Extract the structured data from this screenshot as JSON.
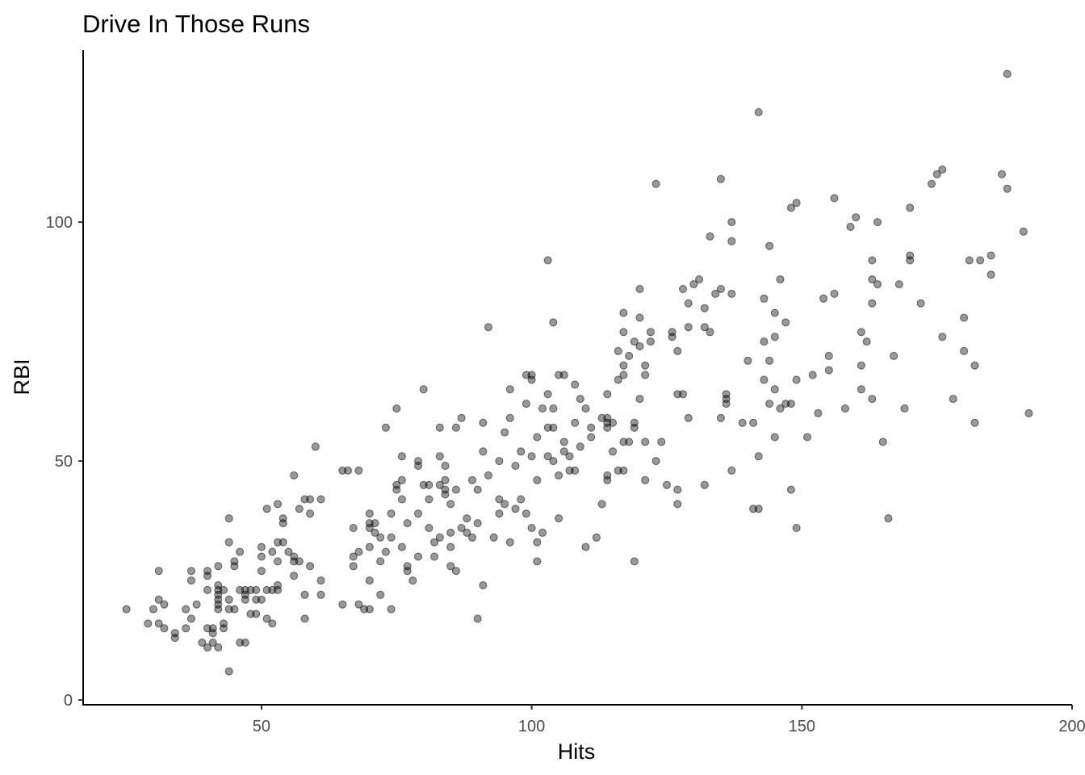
{
  "chart_data": {
    "type": "scatter",
    "title": "Drive In Those Runs",
    "xlabel": "Hits",
    "ylabel": "RBI",
    "xlim": [
      17,
      200
    ],
    "ylim": [
      -1,
      136
    ],
    "x_ticks": [
      50,
      100,
      150,
      200
    ],
    "x_tick_labels": [
      "50",
      "100",
      "150",
      "200"
    ],
    "y_ticks": [
      0,
      50,
      100
    ],
    "y_tick_labels": [
      "0",
      "50",
      "100"
    ],
    "grid": false,
    "legend": "none",
    "point_color": "#000000",
    "point_alpha": 0.4,
    "points": [
      [
        25,
        19
      ],
      [
        29,
        16
      ],
      [
        30,
        19
      ],
      [
        31,
        27
      ],
      [
        31,
        21
      ],
      [
        31,
        16
      ],
      [
        32,
        15
      ],
      [
        32,
        20
      ],
      [
        34,
        13
      ],
      [
        34,
        14
      ],
      [
        36,
        15
      ],
      [
        36,
        19
      ],
      [
        37,
        17
      ],
      [
        37,
        25
      ],
      [
        37,
        27
      ],
      [
        38,
        20
      ],
      [
        39,
        12
      ],
      [
        40,
        15
      ],
      [
        40,
        27
      ],
      [
        40,
        26
      ],
      [
        40,
        23
      ],
      [
        40,
        11
      ],
      [
        41,
        14
      ],
      [
        41,
        15
      ],
      [
        41,
        12
      ],
      [
        42,
        11
      ],
      [
        42,
        21
      ],
      [
        42,
        24
      ],
      [
        42,
        19
      ],
      [
        42,
        20
      ],
      [
        42,
        22
      ],
      [
        42,
        23
      ],
      [
        42,
        28
      ],
      [
        43,
        16
      ],
      [
        43,
        15
      ],
      [
        43,
        23
      ],
      [
        44,
        19
      ],
      [
        44,
        38
      ],
      [
        44,
        33
      ],
      [
        44,
        6
      ],
      [
        44,
        21
      ],
      [
        45,
        29
      ],
      [
        45,
        28
      ],
      [
        45,
        19
      ],
      [
        46,
        23
      ],
      [
        46,
        31
      ],
      [
        46,
        12
      ],
      [
        47,
        12
      ],
      [
        47,
        21
      ],
      [
        47,
        22
      ],
      [
        47,
        23
      ],
      [
        48,
        18
      ],
      [
        48,
        23
      ],
      [
        49,
        21
      ],
      [
        49,
        18
      ],
      [
        49,
        23
      ],
      [
        50,
        32
      ],
      [
        50,
        27
      ],
      [
        50,
        30
      ],
      [
        50,
        21
      ],
      [
        51,
        23
      ],
      [
        51,
        40
      ],
      [
        51,
        17
      ],
      [
        52,
        23
      ],
      [
        52,
        31
      ],
      [
        52,
        16
      ],
      [
        53,
        24
      ],
      [
        53,
        33
      ],
      [
        53,
        23
      ],
      [
        53,
        41
      ],
      [
        53,
        29
      ],
      [
        54,
        37
      ],
      [
        54,
        38
      ],
      [
        54,
        33
      ],
      [
        55,
        31
      ],
      [
        56,
        47
      ],
      [
        56,
        29
      ],
      [
        56,
        30
      ],
      [
        56,
        26
      ],
      [
        57,
        40
      ],
      [
        57,
        29
      ],
      [
        58,
        22
      ],
      [
        58,
        42
      ],
      [
        58,
        17
      ],
      [
        59,
        28
      ],
      [
        59,
        39
      ],
      [
        59,
        42
      ],
      [
        60,
        53
      ],
      [
        61,
        42
      ],
      [
        61,
        25
      ],
      [
        61,
        22
      ],
      [
        65,
        48
      ],
      [
        65,
        20
      ],
      [
        66,
        48
      ],
      [
        67,
        30
      ],
      [
        67,
        36
      ],
      [
        67,
        28
      ],
      [
        68,
        48
      ],
      [
        68,
        31
      ],
      [
        68,
        20
      ],
      [
        69,
        19
      ],
      [
        70,
        25
      ],
      [
        70,
        36
      ],
      [
        70,
        37
      ],
      [
        70,
        32
      ],
      [
        70,
        19
      ],
      [
        70,
        39
      ],
      [
        71,
        35
      ],
      [
        71,
        37
      ],
      [
        72,
        34
      ],
      [
        72,
        22
      ],
      [
        72,
        29
      ],
      [
        73,
        31
      ],
      [
        73,
        57
      ],
      [
        74,
        34
      ],
      [
        74,
        19
      ],
      [
        74,
        39
      ],
      [
        75,
        44
      ],
      [
        75,
        45
      ],
      [
        75,
        61
      ],
      [
        76,
        46
      ],
      [
        76,
        42
      ],
      [
        76,
        32
      ],
      [
        76,
        51
      ],
      [
        77,
        37
      ],
      [
        77,
        28
      ],
      [
        77,
        27
      ],
      [
        78,
        25
      ],
      [
        79,
        49
      ],
      [
        79,
        50
      ],
      [
        79,
        39
      ],
      [
        79,
        30
      ],
      [
        80,
        65
      ],
      [
        80,
        45
      ],
      [
        81,
        42
      ],
      [
        81,
        45
      ],
      [
        81,
        36
      ],
      [
        82,
        33
      ],
      [
        82,
        30
      ],
      [
        83,
        57
      ],
      [
        83,
        45
      ],
      [
        83,
        34
      ],
      [
        83,
        51
      ],
      [
        84,
        46
      ],
      [
        84,
        44
      ],
      [
        84,
        49
      ],
      [
        84,
        43
      ],
      [
        85,
        41
      ],
      [
        85,
        35
      ],
      [
        85,
        28
      ],
      [
        85,
        32
      ],
      [
        86,
        44
      ],
      [
        86,
        57
      ],
      [
        86,
        27
      ],
      [
        87,
        59
      ],
      [
        87,
        36
      ],
      [
        88,
        35
      ],
      [
        88,
        38
      ],
      [
        89,
        34
      ],
      [
        89,
        46
      ],
      [
        90,
        17
      ],
      [
        90,
        37
      ],
      [
        90,
        44
      ],
      [
        91,
        24
      ],
      [
        91,
        52
      ],
      [
        91,
        58
      ],
      [
        92,
        78
      ],
      [
        92,
        47
      ],
      [
        93,
        34
      ],
      [
        94,
        50
      ],
      [
        94,
        39
      ],
      [
        94,
        42
      ],
      [
        95,
        41
      ],
      [
        95,
        56
      ],
      [
        96,
        59
      ],
      [
        96,
        33
      ],
      [
        96,
        65
      ],
      [
        97,
        49
      ],
      [
        97,
        40
      ],
      [
        98,
        42
      ],
      [
        98,
        52
      ],
      [
        99,
        62
      ],
      [
        99,
        68
      ],
      [
        99,
        39
      ],
      [
        100,
        68
      ],
      [
        100,
        51
      ],
      [
        100,
        67
      ],
      [
        100,
        36
      ],
      [
        101,
        33
      ],
      [
        101,
        46
      ],
      [
        101,
        55
      ],
      [
        101,
        29
      ],
      [
        102,
        61
      ],
      [
        102,
        35
      ],
      [
        103,
        57
      ],
      [
        103,
        64
      ],
      [
        103,
        92
      ],
      [
        103,
        51
      ],
      [
        104,
        57
      ],
      [
        104,
        50
      ],
      [
        104,
        61
      ],
      [
        104,
        79
      ],
      [
        105,
        68
      ],
      [
        105,
        47
      ],
      [
        105,
        38
      ],
      [
        106,
        54
      ],
      [
        106,
        52
      ],
      [
        106,
        68
      ],
      [
        107,
        51
      ],
      [
        107,
        48
      ],
      [
        108,
        58
      ],
      [
        108,
        66
      ],
      [
        108,
        48
      ],
      [
        109,
        63
      ],
      [
        109,
        53
      ],
      [
        110,
        32
      ],
      [
        110,
        61
      ],
      [
        111,
        57
      ],
      [
        111,
        55
      ],
      [
        112,
        34
      ],
      [
        113,
        41
      ],
      [
        113,
        59
      ],
      [
        114,
        64
      ],
      [
        114,
        47
      ],
      [
        114,
        46
      ],
      [
        114,
        57
      ],
      [
        114,
        58
      ],
      [
        114,
        59
      ],
      [
        115,
        58
      ],
      [
        115,
        52
      ],
      [
        116,
        73
      ],
      [
        116,
        48
      ],
      [
        116,
        67
      ],
      [
        117,
        54
      ],
      [
        117,
        68
      ],
      [
        117,
        77
      ],
      [
        117,
        70
      ],
      [
        117,
        81
      ],
      [
        117,
        48
      ],
      [
        118,
        54
      ],
      [
        118,
        72
      ],
      [
        119,
        58
      ],
      [
        119,
        29
      ],
      [
        119,
        57
      ],
      [
        119,
        75
      ],
      [
        120,
        86
      ],
      [
        120,
        74
      ],
      [
        120,
        63
      ],
      [
        120,
        80
      ],
      [
        121,
        54
      ],
      [
        121,
        70
      ],
      [
        121,
        46
      ],
      [
        121,
        68
      ],
      [
        122,
        77
      ],
      [
        122,
        75
      ],
      [
        123,
        108
      ],
      [
        123,
        50
      ],
      [
        124,
        54
      ],
      [
        125,
        45
      ],
      [
        126,
        77
      ],
      [
        126,
        76
      ],
      [
        127,
        64
      ],
      [
        127,
        73
      ],
      [
        127,
        44
      ],
      [
        127,
        41
      ],
      [
        128,
        64
      ],
      [
        128,
        86
      ],
      [
        129,
        59
      ],
      [
        129,
        83
      ],
      [
        129,
        78
      ],
      [
        130,
        87
      ],
      [
        131,
        88
      ],
      [
        132,
        78
      ],
      [
        132,
        82
      ],
      [
        132,
        45
      ],
      [
        133,
        77
      ],
      [
        133,
        97
      ],
      [
        134,
        85
      ],
      [
        135,
        59
      ],
      [
        135,
        86
      ],
      [
        135,
        109
      ],
      [
        136,
        64
      ],
      [
        136,
        63
      ],
      [
        136,
        62
      ],
      [
        137,
        85
      ],
      [
        137,
        96
      ],
      [
        137,
        100
      ],
      [
        137,
        48
      ],
      [
        139,
        58
      ],
      [
        140,
        71
      ],
      [
        141,
        58
      ],
      [
        141,
        40
      ],
      [
        142,
        40
      ],
      [
        142,
        51
      ],
      [
        142,
        123
      ],
      [
        143,
        84
      ],
      [
        143,
        67
      ],
      [
        143,
        75
      ],
      [
        144,
        71
      ],
      [
        144,
        95
      ],
      [
        144,
        62
      ],
      [
        145,
        81
      ],
      [
        145,
        76
      ],
      [
        145,
        65
      ],
      [
        145,
        55
      ],
      [
        146,
        88
      ],
      [
        146,
        61
      ],
      [
        147,
        79
      ],
      [
        147,
        62
      ],
      [
        148,
        103
      ],
      [
        148,
        44
      ],
      [
        148,
        62
      ],
      [
        149,
        67
      ],
      [
        149,
        36
      ],
      [
        149,
        104
      ],
      [
        151,
        55
      ],
      [
        152,
        68
      ],
      [
        153,
        60
      ],
      [
        154,
        84
      ],
      [
        155,
        72
      ],
      [
        155,
        69
      ],
      [
        156,
        105
      ],
      [
        156,
        85
      ],
      [
        158,
        61
      ],
      [
        159,
        99
      ],
      [
        160,
        101
      ],
      [
        161,
        77
      ],
      [
        161,
        70
      ],
      [
        161,
        65
      ],
      [
        162,
        75
      ],
      [
        163,
        92
      ],
      [
        163,
        88
      ],
      [
        163,
        83
      ],
      [
        163,
        63
      ],
      [
        164,
        87
      ],
      [
        164,
        100
      ],
      [
        165,
        54
      ],
      [
        166,
        38
      ],
      [
        167,
        72
      ],
      [
        168,
        87
      ],
      [
        169,
        61
      ],
      [
        170,
        92
      ],
      [
        170,
        93
      ],
      [
        170,
        103
      ],
      [
        172,
        83
      ],
      [
        174,
        108
      ],
      [
        175,
        110
      ],
      [
        176,
        76
      ],
      [
        176,
        111
      ],
      [
        178,
        63
      ],
      [
        180,
        73
      ],
      [
        180,
        80
      ],
      [
        181,
        92
      ],
      [
        182,
        58
      ],
      [
        182,
        70
      ],
      [
        183,
        92
      ],
      [
        185,
        89
      ],
      [
        185,
        93
      ],
      [
        187,
        110
      ],
      [
        188,
        131
      ],
      [
        188,
        107
      ],
      [
        191,
        98
      ],
      [
        192,
        60
      ]
    ]
  }
}
